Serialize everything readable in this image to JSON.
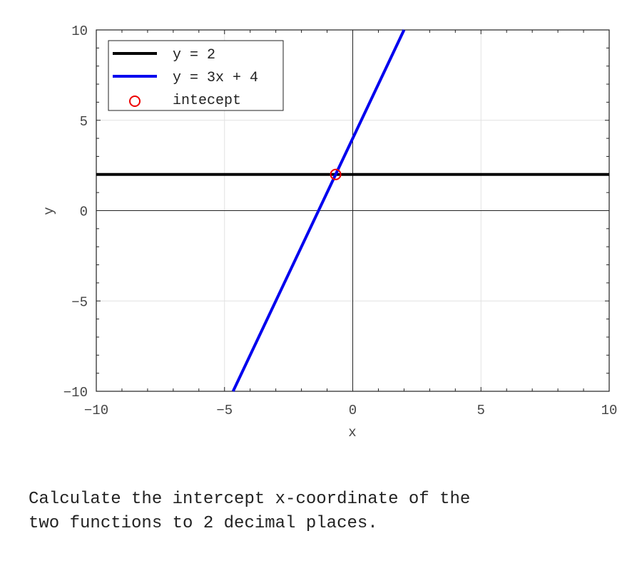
{
  "chart_data": {
    "type": "line",
    "xlabel": "x",
    "ylabel": "y",
    "xlim": [
      -10,
      10
    ],
    "ylim": [
      -10,
      10
    ],
    "xticks": [
      -10,
      -5,
      0,
      5,
      10
    ],
    "yticks": [
      -10,
      -5,
      0,
      5,
      10
    ],
    "grid": true,
    "legend_placement": "top-left",
    "series": [
      {
        "name": "y = 2",
        "type": "line",
        "color": "#000000",
        "x": [
          -10,
          10
        ],
        "y": [
          2,
          2
        ]
      },
      {
        "name": "y = 3x + 4",
        "type": "line",
        "color": "#0000ee",
        "x": [
          -4.6667,
          2
        ],
        "y": [
          -10,
          10
        ]
      },
      {
        "name": "intecept",
        "type": "scatter",
        "marker": "open-circle",
        "color": "#ee0000",
        "x": [
          -0.6667
        ],
        "y": [
          2
        ]
      }
    ]
  },
  "question": "Calculate the intercept x-coordinate of the\ntwo functions to 2 decimal places."
}
